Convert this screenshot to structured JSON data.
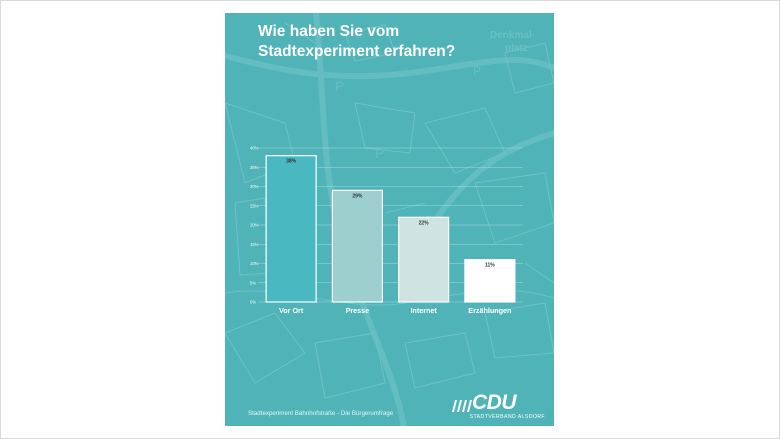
{
  "poster": {
    "title_line1": "Wie haben Sie vom",
    "title_line2": "Stadtexperiment erfahren?",
    "footer": "Stadtexperiment Bahnhofstraße - Die Bürgerumfrage",
    "background_color": "#4fb3b8",
    "logo": {
      "wordmark": "CDU",
      "subtitle": "STADTVERBAND ALSDORF",
      "icon": "cdu-stripes-icon"
    },
    "map_labels": {
      "denkmal1": "Denkmal-",
      "denkmal2": "platz"
    }
  },
  "chart_data": {
    "type": "bar",
    "title": "Wie haben Sie vom Stadtexperiment erfahren?",
    "categories": [
      "Vor Ort",
      "Presse",
      "Internet",
      "Erzählungen"
    ],
    "values": [
      38,
      29,
      22,
      11
    ],
    "value_labels": [
      "38%",
      "29%",
      "22%",
      "11%"
    ],
    "bar_colors": [
      "#4ab8c1",
      "#9dcfcf",
      "#cfe3e1",
      "#ffffff"
    ],
    "ylim": [
      0,
      40
    ],
    "y_ticks": [
      0,
      5,
      10,
      15,
      20,
      25,
      30,
      35,
      40
    ],
    "y_tick_labels": [
      "0%",
      "5%",
      "10%",
      "15%",
      "20%",
      "25%",
      "30%",
      "35%",
      "40%"
    ],
    "grid": true,
    "xlabel": "",
    "ylabel": ""
  }
}
